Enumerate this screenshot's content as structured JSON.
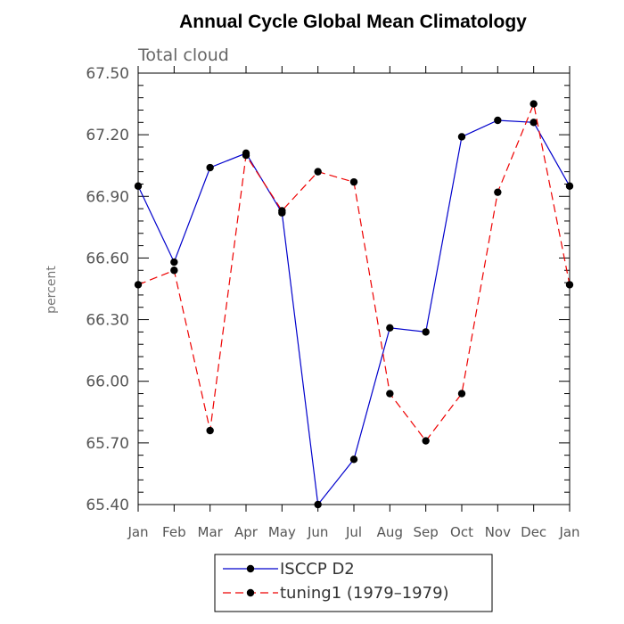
{
  "chart_data": {
    "type": "line",
    "title": "Annual Cycle Global Mean Climatology",
    "subtitle": "Total cloud",
    "xlabel": "",
    "ylabel": "percent",
    "ylim": [
      65.4,
      67.5
    ],
    "yticks": [
      "65.40",
      "65.70",
      "66.00",
      "66.30",
      "66.60",
      "66.90",
      "67.20",
      "67.50"
    ],
    "categories": [
      "Jan",
      "Feb",
      "Mar",
      "Apr",
      "May",
      "Jun",
      "Jul",
      "Aug",
      "Sep",
      "Oct",
      "Nov",
      "Dec",
      "Jan"
    ],
    "series": [
      {
        "name": "ISCCP D2",
        "color": "#0000cc",
        "dash": "solid",
        "values": [
          66.95,
          66.58,
          67.04,
          67.11,
          66.82,
          65.4,
          65.62,
          66.26,
          66.24,
          67.19,
          67.27,
          67.26,
          66.95
        ]
      },
      {
        "name": "tuning1 (1979–1979)",
        "color": "#ee0000",
        "dash": "dashed",
        "values": [
          66.47,
          66.54,
          65.76,
          67.1,
          66.83,
          67.02,
          66.97,
          65.94,
          65.71,
          65.94,
          66.92,
          67.35,
          66.47
        ]
      }
    ],
    "legend": "bottom"
  }
}
